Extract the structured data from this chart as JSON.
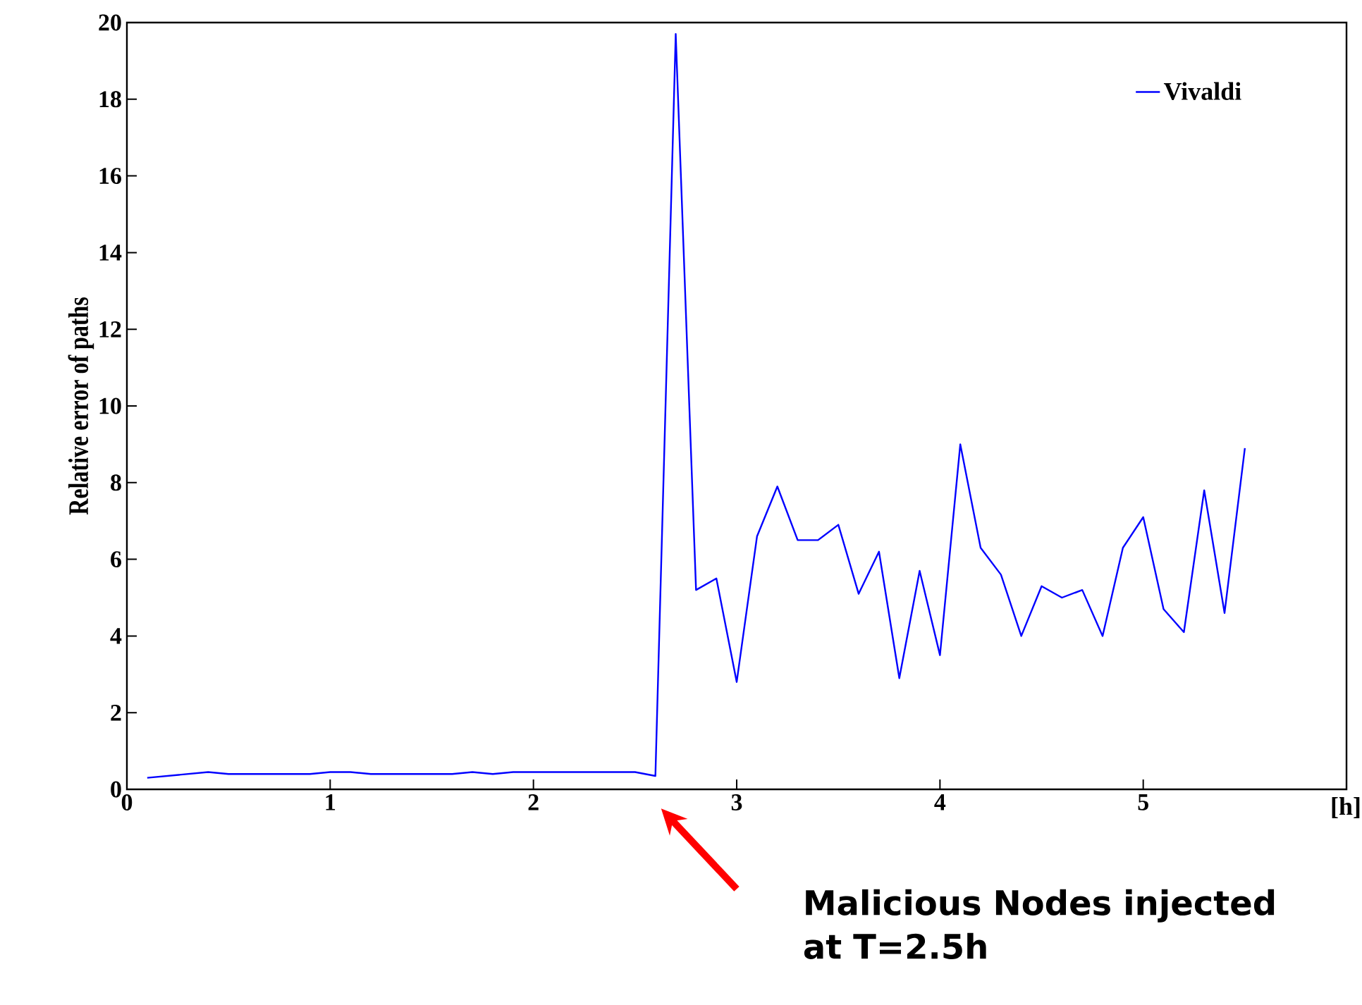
{
  "chart_data": {
    "type": "line",
    "xlabel": "[h]",
    "ylabel": "Relative error of paths",
    "x": [
      0.1,
      0.2,
      0.3,
      0.4,
      0.5,
      0.6,
      0.7,
      0.8,
      0.9,
      1.0,
      1.1,
      1.2,
      1.3,
      1.4,
      1.5,
      1.6,
      1.7,
      1.8,
      1.9,
      2.0,
      2.1,
      2.2,
      2.3,
      2.4,
      2.5,
      2.6,
      2.7,
      2.8,
      2.9,
      3.0,
      3.1,
      3.2,
      3.3,
      3.4,
      3.5,
      3.6,
      3.7,
      3.8,
      3.9,
      4.0,
      4.1,
      4.2,
      4.3,
      4.4,
      4.5,
      4.6,
      4.7,
      4.8,
      4.9,
      5.0,
      5.1,
      5.2,
      5.3,
      5.4,
      5.5
    ],
    "series": [
      {
        "name": "Vivaldi",
        "color": "#0000ff",
        "values": [
          0.3,
          0.35,
          0.4,
          0.45,
          0.4,
          0.4,
          0.4,
          0.4,
          0.4,
          0.45,
          0.45,
          0.4,
          0.4,
          0.4,
          0.4,
          0.4,
          0.45,
          0.4,
          0.45,
          0.45,
          0.45,
          0.45,
          0.45,
          0.45,
          0.45,
          0.35,
          19.7,
          5.2,
          5.5,
          2.8,
          6.6,
          7.9,
          6.5,
          6.5,
          6.9,
          5.1,
          6.2,
          2.9,
          5.7,
          3.5,
          9.0,
          6.3,
          5.6,
          4.0,
          5.3,
          5.0,
          5.2,
          4.0,
          6.3,
          7.1,
          4.7,
          4.1,
          7.8,
          4.6,
          8.9
        ]
      }
    ],
    "xlim": [
      0,
      6
    ],
    "xticks": [
      0,
      1,
      2,
      3,
      4,
      5
    ],
    "ylim": [
      0,
      20
    ],
    "yticks": [
      0,
      2,
      4,
      6,
      8,
      10,
      12,
      14,
      16,
      18,
      20
    ],
    "legend": "top right",
    "grid": false,
    "annotations": [
      "Malicious Nodes injected at T=2.5h"
    ]
  }
}
